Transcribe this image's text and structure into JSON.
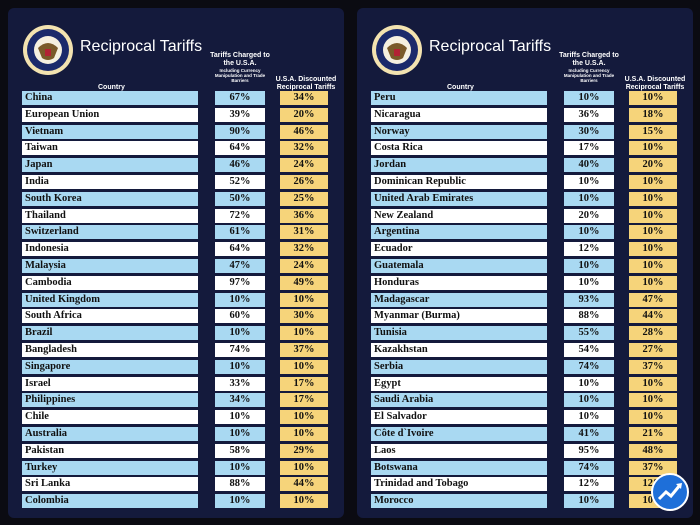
{
  "panels": [
    {
      "title": "Reciprocal Tariffs",
      "headers": {
        "country": "Country",
        "charged": "Tariffs Charged to the U.S.A.",
        "charged_note": "Including Currency Manipulation and Trade Barriers",
        "discounted": "U.S.A. Discounted Reciprocal Tariffs"
      },
      "rows": [
        [
          "China",
          "67%",
          "34%"
        ],
        [
          "European Union",
          "39%",
          "20%"
        ],
        [
          "Vietnam",
          "90%",
          "46%"
        ],
        [
          "Taiwan",
          "64%",
          "32%"
        ],
        [
          "Japan",
          "46%",
          "24%"
        ],
        [
          "India",
          "52%",
          "26%"
        ],
        [
          "South Korea",
          "50%",
          "25%"
        ],
        [
          "Thailand",
          "72%",
          "36%"
        ],
        [
          "Switzerland",
          "61%",
          "31%"
        ],
        [
          "Indonesia",
          "64%",
          "32%"
        ],
        [
          "Malaysia",
          "47%",
          "24%"
        ],
        [
          "Cambodia",
          "97%",
          "49%"
        ],
        [
          "United Kingdom",
          "10%",
          "10%"
        ],
        [
          "South Africa",
          "60%",
          "30%"
        ],
        [
          "Brazil",
          "10%",
          "10%"
        ],
        [
          "Bangladesh",
          "74%",
          "37%"
        ],
        [
          "Singapore",
          "10%",
          "10%"
        ],
        [
          "Israel",
          "33%",
          "17%"
        ],
        [
          "Philippines",
          "34%",
          "17%"
        ],
        [
          "Chile",
          "10%",
          "10%"
        ],
        [
          "Australia",
          "10%",
          "10%"
        ],
        [
          "Pakistan",
          "58%",
          "29%"
        ],
        [
          "Turkey",
          "10%",
          "10%"
        ],
        [
          "Sri Lanka",
          "88%",
          "44%"
        ],
        [
          "Colombia",
          "10%",
          "10%"
        ]
      ]
    },
    {
      "title": "Reciprocal Tariffs",
      "headers": {
        "country": "Country",
        "charged": "Tariffs Charged to the U.S.A.",
        "charged_note": "Including Currency Manipulation and Trade Barriers",
        "discounted": "U.S.A. Discounted Reciprocal Tariffs"
      },
      "rows": [
        [
          "Peru",
          "10%",
          "10%"
        ],
        [
          "Nicaragua",
          "36%",
          "18%"
        ],
        [
          "Norway",
          "30%",
          "15%"
        ],
        [
          "Costa Rica",
          "17%",
          "10%"
        ],
        [
          "Jordan",
          "40%",
          "20%"
        ],
        [
          "Dominican Republic",
          "10%",
          "10%"
        ],
        [
          "United Arab Emirates",
          "10%",
          "10%"
        ],
        [
          "New Zealand",
          "20%",
          "10%"
        ],
        [
          "Argentina",
          "10%",
          "10%"
        ],
        [
          "Ecuador",
          "12%",
          "10%"
        ],
        [
          "Guatemala",
          "10%",
          "10%"
        ],
        [
          "Honduras",
          "10%",
          "10%"
        ],
        [
          "Madagascar",
          "93%",
          "47%"
        ],
        [
          "Myanmar (Burma)",
          "88%",
          "44%"
        ],
        [
          "Tunisia",
          "55%",
          "28%"
        ],
        [
          "Kazakhstan",
          "54%",
          "27%"
        ],
        [
          "Serbia",
          "74%",
          "37%"
        ],
        [
          "Egypt",
          "10%",
          "10%"
        ],
        [
          "Saudi Arabia",
          "10%",
          "10%"
        ],
        [
          "El Salvador",
          "10%",
          "10%"
        ],
        [
          "Côte d`Ivoire",
          "41%",
          "21%"
        ],
        [
          "Laos",
          "95%",
          "48%"
        ],
        [
          "Botswana",
          "74%",
          "37%"
        ],
        [
          "Trinidad and Tobago",
          "12%",
          "12%"
        ],
        [
          "Morocco",
          "10%",
          "10%"
        ]
      ]
    }
  ]
}
